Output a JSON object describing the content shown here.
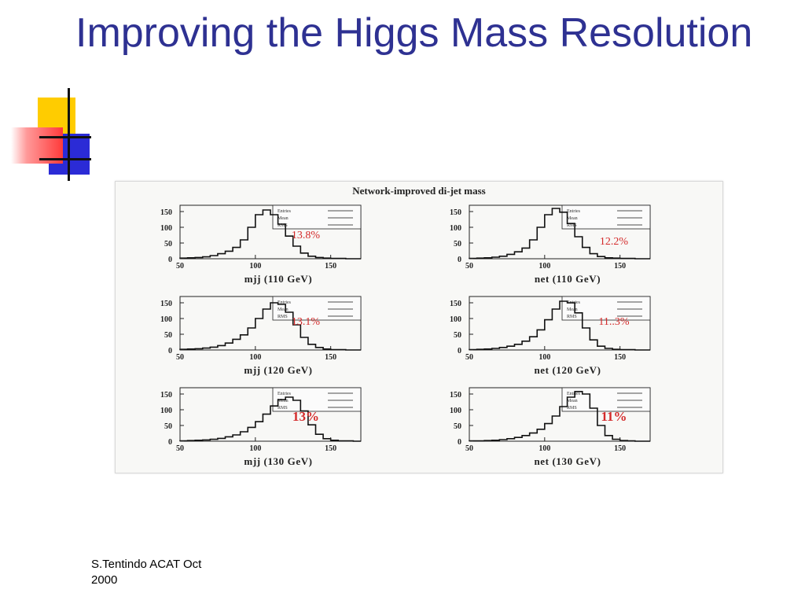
{
  "slide": {
    "title": "Improving the Higgs Mass Resolution",
    "footer_line1": "S.Tentindo ACAT Oct",
    "footer_line2": "2000"
  },
  "colors": {
    "title": "#2e3192",
    "annotation": "#d42a2a",
    "histogram": "#111111"
  },
  "figure": {
    "title": "Network-improved di-jet mass",
    "stats_labels": [
      "Entries",
      "Mean",
      "RMS"
    ]
  },
  "chart_data": [
    {
      "type": "line",
      "title": "",
      "xlabel": "mjj (110 GeV)",
      "ylabel": "",
      "xlim": [
        50,
        170
      ],
      "ylim": [
        0,
        170
      ],
      "xticks": [
        "50",
        "100",
        "150"
      ],
      "yticks": [
        "0",
        "50",
        "100",
        "150"
      ],
      "annotation": "13.8%",
      "x": [
        50,
        55,
        60,
        65,
        70,
        75,
        80,
        85,
        90,
        95,
        100,
        105,
        110,
        115,
        120,
        125,
        130,
        135,
        140,
        145,
        150,
        155,
        160,
        165,
        170
      ],
      "y": [
        2,
        3,
        4,
        6,
        10,
        16,
        24,
        36,
        60,
        100,
        140,
        155,
        140,
        110,
        72,
        40,
        18,
        8,
        4,
        2,
        1,
        1,
        0,
        0,
        0
      ]
    },
    {
      "type": "line",
      "title": "",
      "xlabel": "net (110 GeV)",
      "ylabel": "",
      "xlim": [
        50,
        170
      ],
      "ylim": [
        0,
        170
      ],
      "xticks": [
        "50",
        "100",
        "150"
      ],
      "yticks": [
        "0",
        "50",
        "100",
        "150"
      ],
      "annotation": "12.2%",
      "x": [
        50,
        55,
        60,
        65,
        70,
        75,
        80,
        85,
        90,
        95,
        100,
        105,
        110,
        115,
        120,
        125,
        130,
        135,
        140,
        145,
        150,
        155,
        160,
        165,
        170
      ],
      "y": [
        1,
        2,
        3,
        5,
        8,
        14,
        22,
        34,
        60,
        100,
        140,
        160,
        148,
        112,
        70,
        36,
        16,
        7,
        3,
        2,
        1,
        1,
        0,
        0,
        0
      ]
    },
    {
      "type": "line",
      "title": "",
      "xlabel": "mjj (120 GeV)",
      "ylabel": "",
      "xlim": [
        50,
        170
      ],
      "ylim": [
        0,
        170
      ],
      "xticks": [
        "50",
        "100",
        "150"
      ],
      "yticks": [
        "0",
        "50",
        "100",
        "150"
      ],
      "annotation": "13.1%",
      "x": [
        50,
        55,
        60,
        65,
        70,
        75,
        80,
        85,
        90,
        95,
        100,
        105,
        110,
        115,
        120,
        125,
        130,
        135,
        140,
        145,
        150,
        155,
        160,
        165,
        170
      ],
      "y": [
        2,
        3,
        4,
        6,
        9,
        14,
        22,
        34,
        48,
        70,
        100,
        130,
        150,
        145,
        120,
        80,
        40,
        18,
        8,
        3,
        1,
        1,
        0,
        0,
        0
      ]
    },
    {
      "type": "line",
      "title": "",
      "xlabel": "net (120 GeV)",
      "ylabel": "",
      "xlim": [
        50,
        170
      ],
      "ylim": [
        0,
        170
      ],
      "xticks": [
        "50",
        "100",
        "150"
      ],
      "yticks": [
        "0",
        "50",
        "100",
        "150"
      ],
      "annotation": "11..3%",
      "x": [
        50,
        55,
        60,
        65,
        70,
        75,
        80,
        85,
        90,
        95,
        100,
        105,
        110,
        115,
        120,
        125,
        130,
        135,
        140,
        145,
        150,
        155,
        160,
        165,
        170
      ],
      "y": [
        1,
        2,
        3,
        5,
        8,
        12,
        18,
        28,
        42,
        64,
        96,
        130,
        155,
        150,
        118,
        70,
        32,
        12,
        5,
        2,
        1,
        1,
        0,
        0,
        0
      ]
    },
    {
      "type": "line",
      "title": "",
      "xlabel": "mjj (130 GeV)",
      "ylabel": "",
      "xlim": [
        50,
        170
      ],
      "ylim": [
        0,
        170
      ],
      "xticks": [
        "50",
        "100",
        "150"
      ],
      "yticks": [
        "0",
        "50",
        "100",
        "150"
      ],
      "annotation": "13%",
      "x": [
        50,
        55,
        60,
        65,
        70,
        75,
        80,
        85,
        90,
        95,
        100,
        105,
        110,
        115,
        120,
        125,
        130,
        135,
        140,
        145,
        150,
        155,
        160,
        165,
        170
      ],
      "y": [
        1,
        2,
        3,
        4,
        6,
        9,
        14,
        20,
        30,
        44,
        62,
        86,
        112,
        132,
        140,
        130,
        96,
        52,
        22,
        8,
        3,
        1,
        1,
        0,
        0
      ]
    },
    {
      "type": "line",
      "title": "",
      "xlabel": "net (130 GeV)",
      "ylabel": "",
      "xlim": [
        50,
        170
      ],
      "ylim": [
        0,
        170
      ],
      "xticks": [
        "50",
        "100",
        "150"
      ],
      "yticks": [
        "0",
        "50",
        "100",
        "150"
      ],
      "annotation": "11%",
      "x": [
        50,
        55,
        60,
        65,
        70,
        75,
        80,
        85,
        90,
        95,
        100,
        105,
        110,
        115,
        120,
        125,
        130,
        135,
        140,
        145,
        150,
        155,
        160,
        165,
        170
      ],
      "y": [
        1,
        1,
        2,
        3,
        5,
        8,
        12,
        18,
        26,
        38,
        56,
        80,
        110,
        140,
        158,
        150,
        105,
        50,
        18,
        6,
        2,
        1,
        0,
        0,
        0
      ]
    }
  ]
}
